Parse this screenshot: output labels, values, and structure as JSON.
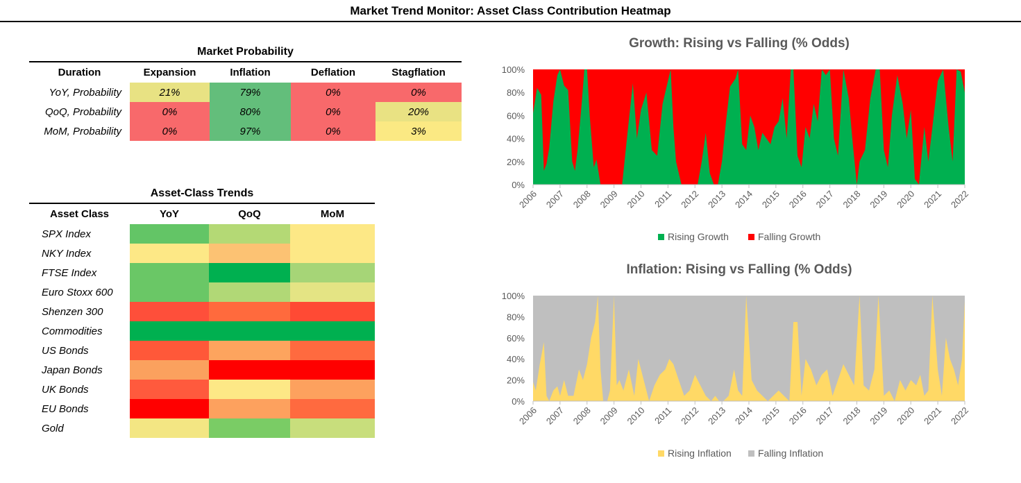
{
  "title": "Market Trend Monitor: Asset Class Contribution Heatmap",
  "probability": {
    "caption": "Market Probability",
    "columns": [
      "Duration",
      "Expansion",
      "Inflation",
      "Deflation",
      "Stagflation"
    ],
    "rows": [
      {
        "label": "YoY, Probability",
        "cells": [
          {
            "v": "21%",
            "c": "#e8e283"
          },
          {
            "v": "79%",
            "c": "#63be7b"
          },
          {
            "v": "0%",
            "c": "#f8696b"
          },
          {
            "v": "0%",
            "c": "#f8696b"
          }
        ]
      },
      {
        "label": "QoQ, Probability",
        "cells": [
          {
            "v": "0%",
            "c": "#f8696b"
          },
          {
            "v": "80%",
            "c": "#63be7b"
          },
          {
            "v": "0%",
            "c": "#f8696b"
          },
          {
            "v": "20%",
            "c": "#e9e283"
          }
        ]
      },
      {
        "label": "MoM, Probability",
        "cells": [
          {
            "v": "0%",
            "c": "#f8696b"
          },
          {
            "v": "97%",
            "c": "#63be7b"
          },
          {
            "v": "0%",
            "c": "#f8696b"
          },
          {
            "v": "3%",
            "c": "#fbe983"
          }
        ]
      }
    ]
  },
  "trends": {
    "caption": "Asset-Class Trends",
    "columns": [
      "Asset Class",
      "YoY",
      "QoQ",
      "MoM"
    ],
    "rows": [
      {
        "label": "SPX Index",
        "colors": [
          "#63c566",
          "#b4d975",
          "#fde886"
        ]
      },
      {
        "label": "NKY Index",
        "colors": [
          "#fde886",
          "#fcc273",
          "#fde886"
        ]
      },
      {
        "label": "FTSE Index",
        "colors": [
          "#6ac766",
          "#00b050",
          "#a6d577"
        ]
      },
      {
        "label": "Euro Stoxx 600",
        "colors": [
          "#6ac766",
          "#b1d876",
          "#e4e484"
        ]
      },
      {
        "label": "Shenzen 300",
        "colors": [
          "#fe4f3a",
          "#ff6a3d",
          "#ff4a34"
        ]
      },
      {
        "label": "Commodities",
        "colors": [
          "#00b050",
          "#00b050",
          "#00b050"
        ]
      },
      {
        "label": "US Bonds",
        "colors": [
          "#ff5839",
          "#fda45e",
          "#ff6a3f"
        ]
      },
      {
        "label": "Japan Bonds",
        "colors": [
          "#fba15e",
          "#ff0000",
          "#ff0000"
        ]
      },
      {
        "label": "UK Bonds",
        "colors": [
          "#ff5a3d",
          "#fde886",
          "#fda15e"
        ]
      },
      {
        "label": "EU Bonds",
        "colors": [
          "#ff0000",
          "#fda15e",
          "#ff6a3f"
        ]
      },
      {
        "label": "Gold",
        "colors": [
          "#f3e683",
          "#7acc65",
          "#c8de7c"
        ]
      }
    ]
  },
  "chart_data": [
    {
      "type": "area",
      "title": "Growth: Rising vs Falling (% Odds)",
      "xlabel": "",
      "ylabel": "",
      "x_ticks": [
        "2006",
        "2007",
        "2008",
        "2009",
        "2010",
        "2011",
        "2012",
        "2013",
        "2014",
        "2015",
        "2016",
        "2017",
        "2018",
        "2019",
        "2020",
        "2021",
        "2022"
      ],
      "y_ticks": [
        "0%",
        "20%",
        "40%",
        "60%",
        "80%",
        "100%"
      ],
      "ylim": [
        0,
        100
      ],
      "stacked": true,
      "series": [
        {
          "name": "Rising Growth",
          "color": "#00b050",
          "x": [
            2006.0,
            2006.15,
            2006.3,
            2006.4,
            2006.5,
            2006.6,
            2006.75,
            2006.9,
            2007.0,
            2007.15,
            2007.3,
            2007.45,
            2007.55,
            2007.65,
            2007.8,
            2007.9,
            2008.0,
            2008.1,
            2008.25,
            2008.35,
            2008.5,
            2008.7,
            2008.9,
            2009.1,
            2009.3,
            2009.5,
            2009.7,
            2009.85,
            2010.0,
            2010.2,
            2010.4,
            2010.6,
            2010.8,
            2010.95,
            2011.1,
            2011.2,
            2011.3,
            2011.5,
            2011.7,
            2011.9,
            2012.1,
            2012.25,
            2012.4,
            2012.55,
            2012.7,
            2012.85,
            2013.0,
            2013.15,
            2013.3,
            2013.5,
            2013.6,
            2013.75,
            2013.9,
            2014.05,
            2014.2,
            2014.35,
            2014.5,
            2014.65,
            2014.8,
            2014.95,
            2015.1,
            2015.25,
            2015.4,
            2015.55,
            2015.65,
            2015.8,
            2015.95,
            2016.1,
            2016.25,
            2016.4,
            2016.55,
            2016.7,
            2016.85,
            2017.0,
            2017.15,
            2017.3,
            2017.5,
            2017.7,
            2017.85,
            2018.0,
            2018.1,
            2018.3,
            2018.5,
            2018.7,
            2018.85,
            2019.0,
            2019.15,
            2019.3,
            2019.5,
            2019.7,
            2019.85,
            2020.0,
            2020.15,
            2020.3,
            2020.5,
            2020.65,
            2020.85,
            2021.0,
            2021.2,
            2021.4,
            2021.55,
            2021.7,
            2021.85,
            2022.0
          ],
          "values": [
            62,
            84,
            78,
            12,
            18,
            32,
            72,
            95,
            100,
            86,
            82,
            20,
            12,
            30,
            70,
            100,
            100,
            60,
            15,
            22,
            0,
            0,
            0,
            0,
            0,
            45,
            88,
            40,
            65,
            80,
            30,
            25,
            70,
            85,
            100,
            50,
            20,
            0,
            0,
            0,
            0,
            20,
            45,
            10,
            0,
            0,
            20,
            55,
            85,
            92,
            100,
            35,
            30,
            60,
            50,
            30,
            45,
            40,
            35,
            50,
            55,
            75,
            40,
            100,
            100,
            25,
            15,
            50,
            40,
            70,
            55,
            100,
            95,
            100,
            40,
            25,
            100,
            75,
            35,
            0,
            20,
            30,
            75,
            100,
            100,
            30,
            15,
            60,
            95,
            70,
            40,
            65,
            5,
            0,
            50,
            20,
            60,
            90,
            100,
            50,
            20,
            100,
            98,
            80
          ]
        },
        {
          "name": "Falling Growth",
          "color": "#ff0000",
          "values": "100 - Rising Growth"
        }
      ],
      "legend": "bottom"
    },
    {
      "type": "area",
      "title": "Inflation: Rising vs Falling  (% Odds)",
      "xlabel": "",
      "ylabel": "",
      "x_ticks": [
        "2006",
        "2007",
        "2008",
        "2009",
        "2010",
        "2011",
        "2012",
        "2013",
        "2014",
        "2015",
        "2016",
        "2017",
        "2018",
        "2019",
        "2020",
        "2021",
        "2022"
      ],
      "y_ticks": [
        "0%",
        "20%",
        "40%",
        "60%",
        "80%",
        "100%"
      ],
      "ylim": [
        0,
        100
      ],
      "stacked": true,
      "series": [
        {
          "name": "Rising Inflation",
          "color": "#ffd966",
          "x": [
            2006.0,
            2006.1,
            2006.25,
            2006.4,
            2006.5,
            2006.6,
            2006.75,
            2006.9,
            2007.0,
            2007.15,
            2007.3,
            2007.5,
            2007.7,
            2007.85,
            2008.0,
            2008.15,
            2008.3,
            2008.4,
            2008.5,
            2008.6,
            2008.75,
            2008.85,
            2009.0,
            2009.1,
            2009.2,
            2009.35,
            2009.55,
            2009.75,
            2009.9,
            2010.1,
            2010.3,
            2010.5,
            2010.7,
            2010.9,
            2011.05,
            2011.2,
            2011.4,
            2011.6,
            2011.8,
            2012.0,
            2012.2,
            2012.4,
            2012.6,
            2012.75,
            2012.9,
            2013.05,
            2013.25,
            2013.45,
            2013.6,
            2013.75,
            2013.9,
            2014.1,
            2014.3,
            2014.5,
            2014.7,
            2014.9,
            2015.1,
            2015.3,
            2015.5,
            2015.65,
            2015.8,
            2015.95,
            2016.1,
            2016.3,
            2016.5,
            2016.7,
            2016.9,
            2017.1,
            2017.3,
            2017.5,
            2017.7,
            2017.9,
            2018.1,
            2018.25,
            2018.45,
            2018.65,
            2018.8,
            2019.0,
            2019.2,
            2019.4,
            2019.6,
            2019.8,
            2020.0,
            2020.2,
            2020.35,
            2020.5,
            2020.65,
            2020.8,
            2021.0,
            2021.15,
            2021.3,
            2021.45,
            2021.6,
            2021.75,
            2021.9,
            2022.0
          ],
          "values": [
            18,
            10,
            35,
            56,
            5,
            0,
            10,
            14,
            5,
            20,
            5,
            5,
            30,
            20,
            35,
            60,
            75,
            100,
            30,
            0,
            0,
            10,
            100,
            15,
            20,
            10,
            30,
            5,
            40,
            20,
            0,
            15,
            25,
            30,
            40,
            35,
            20,
            5,
            10,
            25,
            15,
            5,
            0,
            5,
            0,
            0,
            5,
            30,
            10,
            5,
            100,
            20,
            10,
            5,
            0,
            5,
            10,
            5,
            0,
            75,
            75,
            5,
            40,
            30,
            15,
            25,
            30,
            5,
            20,
            35,
            25,
            15,
            100,
            15,
            10,
            30,
            100,
            5,
            10,
            0,
            20,
            10,
            20,
            15,
            25,
            5,
            10,
            100,
            30,
            5,
            60,
            40,
            30,
            15,
            40,
            95
          ]
        },
        {
          "name": "Falling Inflation",
          "color": "#bfbfbf",
          "values": "100 - Rising Inflation"
        }
      ],
      "legend": "bottom"
    }
  ]
}
